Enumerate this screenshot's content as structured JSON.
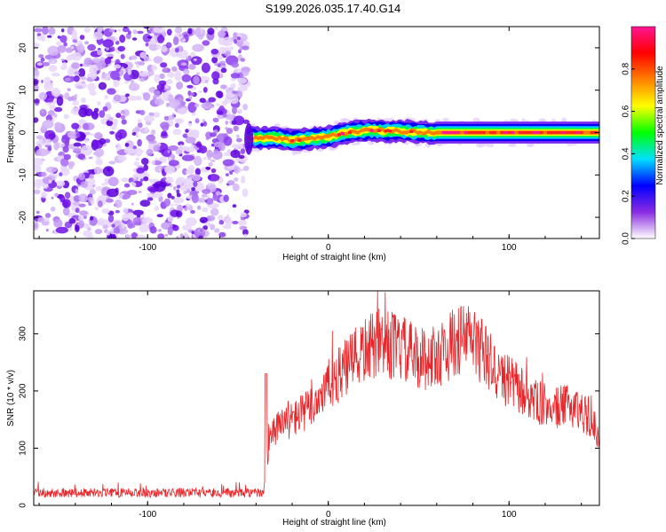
{
  "title": "S199.2026.035.17.40.G14",
  "chart_data": [
    {
      "type": "heatmap",
      "name": "spectrogram",
      "xlabel": "Height of straight line (km)",
      "ylabel": "Frequency (Hz)",
      "xlim": [
        -163,
        150
      ],
      "ylim": [
        -25,
        25
      ],
      "xticks": [
        -100,
        0,
        100
      ],
      "xtick_labels": [
        "-100",
        "0",
        "100"
      ],
      "yticks": [
        -20,
        -10,
        0,
        10,
        20
      ],
      "ytick_labels": [
        "-20",
        "-10",
        "0",
        "10",
        "20"
      ],
      "colorbar": {
        "label": "Normalized spectral amplitude",
        "range": [
          0,
          1
        ],
        "ticks": [
          0,
          0.2,
          0.4,
          0.6,
          0.8
        ],
        "tick_labels": [
          "0.0",
          "0.2",
          "0.4",
          "0.6",
          "0.8"
        ],
        "colors": [
          "#ffffff",
          "#8a2be2",
          "#0000ff",
          "#00e0ff",
          "#00ff00",
          "#ffff00",
          "#ff8000",
          "#ff0000",
          "#ff1493"
        ]
      },
      "noise_region_x": [
        -163,
        -45
      ],
      "signal_start_x": -45,
      "signal_center_freq": [
        {
          "x": -45,
          "f": -1.5
        },
        {
          "x": -30,
          "f": -1.2
        },
        {
          "x": -20,
          "f": -2.0
        },
        {
          "x": -10,
          "f": -1.5
        },
        {
          "x": 0,
          "f": -1.0
        },
        {
          "x": 10,
          "f": 0.0
        },
        {
          "x": 20,
          "f": 0.5
        },
        {
          "x": 40,
          "f": 0.3
        },
        {
          "x": 60,
          "f": 0.0
        },
        {
          "x": 150,
          "f": 0.0
        }
      ]
    },
    {
      "type": "line",
      "name": "snr",
      "xlabel": "Height of straight line (km)",
      "ylabel": "SNR (10 * v/v)",
      "xlim": [
        -163,
        150
      ],
      "ylim": [
        0,
        375
      ],
      "xticks": [
        -100,
        0,
        100
      ],
      "xtick_labels": [
        "-100",
        "0",
        "100"
      ],
      "yticks": [
        0,
        100,
        200,
        300
      ],
      "ytick_labels": [
        "0",
        "100",
        "200",
        "300"
      ],
      "color": "#e8262a",
      "envelope": [
        {
          "x": -163,
          "y": 22
        },
        {
          "x": -36,
          "y": 22
        },
        {
          "x": -32,
          "y": 130
        },
        {
          "x": -20,
          "y": 150
        },
        {
          "x": -10,
          "y": 170
        },
        {
          "x": 0,
          "y": 210
        },
        {
          "x": 10,
          "y": 240
        },
        {
          "x": 20,
          "y": 270
        },
        {
          "x": 30,
          "y": 285
        },
        {
          "x": 40,
          "y": 275
        },
        {
          "x": 50,
          "y": 255
        },
        {
          "x": 60,
          "y": 260
        },
        {
          "x": 70,
          "y": 285
        },
        {
          "x": 78,
          "y": 295
        },
        {
          "x": 85,
          "y": 270
        },
        {
          "x": 95,
          "y": 225
        },
        {
          "x": 105,
          "y": 205
        },
        {
          "x": 115,
          "y": 180
        },
        {
          "x": 125,
          "y": 170
        },
        {
          "x": 135,
          "y": 175
        },
        {
          "x": 142,
          "y": 160
        },
        {
          "x": 150,
          "y": 125
        }
      ]
    }
  ]
}
